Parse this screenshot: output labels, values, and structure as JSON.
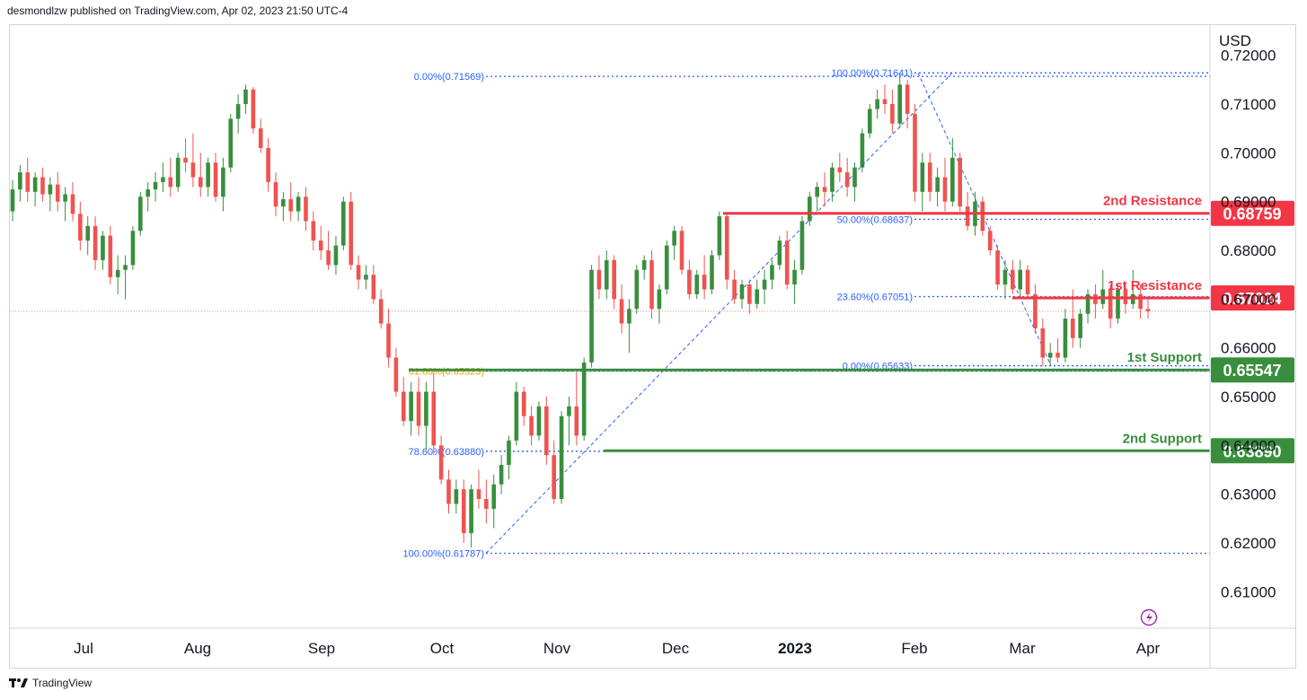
{
  "header": {
    "publisher": "desmondlzw published on TradingView.com, Apr 02, 2023 21:50 UTC-4"
  },
  "footer": {
    "brand": "TradingView",
    "logo_icon": "tradingview-logo-icon"
  },
  "colors": {
    "bull": "#388e3c",
    "bear": "#ef5350",
    "resistance": "#f23645",
    "support": "#388e3c",
    "fib": "#2962ff",
    "fib_gold": "#f0a000",
    "axis_text": "#131722"
  },
  "chart_data": {
    "type": "candlestick",
    "currency": "USD",
    "ylim": [
      0.6025,
      0.7262
    ],
    "y_ticks": [
      "0.72000",
      "0.71000",
      "0.70000",
      "0.69000",
      "0.68000",
      "0.67000",
      "0.66000",
      "0.65000",
      "0.64000",
      "0.63000",
      "0.62000",
      "0.61000"
    ],
    "x_ticks": [
      {
        "label": "Jul",
        "bold": false
      },
      {
        "label": "Aug",
        "bold": false
      },
      {
        "label": "Sep",
        "bold": false
      },
      {
        "label": "Oct",
        "bold": false
      },
      {
        "label": "Nov",
        "bold": false
      },
      {
        "label": "Dec",
        "bold": false
      },
      {
        "label": "2023",
        "bold": true
      },
      {
        "label": "Feb",
        "bold": false
      },
      {
        "label": "Mar",
        "bold": false
      },
      {
        "label": "Apr",
        "bold": false
      }
    ],
    "levels": [
      {
        "name": "2nd Resistance",
        "value": 0.68759,
        "value_label": "0.68759",
        "kind": "resistance"
      },
      {
        "name": "1st Resistance",
        "value": 0.67024,
        "value_label": "0.67024",
        "kind": "resistance"
      },
      {
        "name": "1st Support",
        "value": 0.65547,
        "value_label": "0.65547",
        "kind": "support"
      },
      {
        "name": "2nd Support",
        "value": 0.6389,
        "value_label": "0.63890",
        "kind": "support"
      }
    ],
    "fib_left": [
      {
        "label": "0.00%(0.71569)",
        "value": 0.71569
      },
      {
        "label": "61.80%(0.65523)",
        "value": 0.65523
      },
      {
        "label": "78.60%(0.63880)",
        "value": 0.6388
      },
      {
        "label": "100.00%(0.61787)",
        "value": 0.61787
      }
    ],
    "fib_right": [
      {
        "label": "100.00%(0.71641)",
        "value": 0.71641
      },
      {
        "label": "50.00%(0.68637)",
        "value": 0.68637
      },
      {
        "label": "23.60%(0.67051)",
        "value": 0.67051
      },
      {
        "label": "0.00%(0.65633)",
        "value": 0.65633
      }
    ],
    "candles": [
      [
        0.688,
        0.6945,
        0.686,
        0.6925
      ],
      [
        0.6925,
        0.6975,
        0.69,
        0.696
      ],
      [
        0.696,
        0.699,
        0.69,
        0.692
      ],
      [
        0.692,
        0.696,
        0.689,
        0.695
      ],
      [
        0.695,
        0.697,
        0.69,
        0.6915
      ],
      [
        0.6915,
        0.695,
        0.688,
        0.6935
      ],
      [
        0.6935,
        0.696,
        0.688,
        0.69
      ],
      [
        0.69,
        0.693,
        0.686,
        0.6915
      ],
      [
        0.6915,
        0.694,
        0.686,
        0.6875
      ],
      [
        0.6875,
        0.69,
        0.68,
        0.682
      ],
      [
        0.682,
        0.687,
        0.679,
        0.685
      ],
      [
        0.685,
        0.687,
        0.676,
        0.678
      ],
      [
        0.678,
        0.684,
        0.676,
        0.683
      ],
      [
        0.683,
        0.685,
        0.673,
        0.6745
      ],
      [
        0.6745,
        0.679,
        0.671,
        0.676
      ],
      [
        0.676,
        0.679,
        0.67,
        0.677
      ],
      [
        0.677,
        0.685,
        0.676,
        0.684
      ],
      [
        0.684,
        0.692,
        0.683,
        0.691
      ],
      [
        0.691,
        0.694,
        0.688,
        0.6925
      ],
      [
        0.6925,
        0.696,
        0.69,
        0.694
      ],
      [
        0.694,
        0.698,
        0.692,
        0.695
      ],
      [
        0.695,
        0.699,
        0.691,
        0.693
      ],
      [
        0.693,
        0.7,
        0.692,
        0.699
      ],
      [
        0.699,
        0.703,
        0.696,
        0.698
      ],
      [
        0.698,
        0.704,
        0.693,
        0.695
      ],
      [
        0.695,
        0.7,
        0.691,
        0.693
      ],
      [
        0.693,
        0.699,
        0.691,
        0.698
      ],
      [
        0.698,
        0.7,
        0.69,
        0.691
      ],
      [
        0.691,
        0.699,
        0.688,
        0.697
      ],
      [
        0.697,
        0.708,
        0.696,
        0.707
      ],
      [
        0.707,
        0.712,
        0.704,
        0.71
      ],
      [
        0.71,
        0.714,
        0.708,
        0.713
      ],
      [
        0.713,
        0.7135,
        0.704,
        0.705
      ],
      [
        0.705,
        0.707,
        0.7,
        0.701
      ],
      [
        0.701,
        0.703,
        0.692,
        0.694
      ],
      [
        0.694,
        0.696,
        0.687,
        0.689
      ],
      [
        0.689,
        0.692,
        0.686,
        0.6905
      ],
      [
        0.6905,
        0.694,
        0.686,
        0.688
      ],
      [
        0.688,
        0.692,
        0.686,
        0.691
      ],
      [
        0.691,
        0.693,
        0.684,
        0.686
      ],
      [
        0.686,
        0.688,
        0.68,
        0.682
      ],
      [
        0.682,
        0.685,
        0.678,
        0.68
      ],
      [
        0.68,
        0.684,
        0.676,
        0.677
      ],
      [
        0.677,
        0.683,
        0.675,
        0.681
      ],
      [
        0.681,
        0.691,
        0.68,
        0.69
      ],
      [
        0.69,
        0.692,
        0.676,
        0.677
      ],
      [
        0.677,
        0.679,
        0.672,
        0.674
      ],
      [
        0.674,
        0.677,
        0.672,
        0.675
      ],
      [
        0.675,
        0.677,
        0.669,
        0.67
      ],
      [
        0.67,
        0.672,
        0.664,
        0.665
      ],
      [
        0.665,
        0.668,
        0.656,
        0.658
      ],
      [
        0.658,
        0.66,
        0.65,
        0.651
      ],
      [
        0.651,
        0.654,
        0.644,
        0.645
      ],
      [
        0.645,
        0.653,
        0.642,
        0.651
      ],
      [
        0.651,
        0.654,
        0.642,
        0.644
      ],
      [
        0.644,
        0.653,
        0.639,
        0.651
      ],
      [
        0.651,
        0.655,
        0.638,
        0.64
      ],
      [
        0.64,
        0.642,
        0.632,
        0.633
      ],
      [
        0.633,
        0.635,
        0.626,
        0.628
      ],
      [
        0.628,
        0.633,
        0.626,
        0.631
      ],
      [
        0.631,
        0.633,
        0.62,
        0.622
      ],
      [
        0.622,
        0.632,
        0.619,
        0.631
      ],
      [
        0.631,
        0.635,
        0.627,
        0.629
      ],
      [
        0.629,
        0.633,
        0.624,
        0.627
      ],
      [
        0.627,
        0.634,
        0.623,
        0.632
      ],
      [
        0.632,
        0.638,
        0.63,
        0.636
      ],
      [
        0.636,
        0.642,
        0.633,
        0.641
      ],
      [
        0.641,
        0.653,
        0.64,
        0.651
      ],
      [
        0.651,
        0.652,
        0.644,
        0.646
      ],
      [
        0.646,
        0.648,
        0.64,
        0.642
      ],
      [
        0.642,
        0.649,
        0.641,
        0.648
      ],
      [
        0.648,
        0.65,
        0.636,
        0.638
      ],
      [
        0.638,
        0.641,
        0.628,
        0.629
      ],
      [
        0.629,
        0.647,
        0.628,
        0.646
      ],
      [
        0.646,
        0.65,
        0.64,
        0.648
      ],
      [
        0.648,
        0.655,
        0.64,
        0.642
      ],
      [
        0.642,
        0.658,
        0.641,
        0.657
      ],
      [
        0.657,
        0.677,
        0.656,
        0.676
      ],
      [
        0.676,
        0.679,
        0.67,
        0.672
      ],
      [
        0.672,
        0.68,
        0.67,
        0.678
      ],
      [
        0.678,
        0.679,
        0.668,
        0.67
      ],
      [
        0.67,
        0.673,
        0.663,
        0.665
      ],
      [
        0.665,
        0.67,
        0.659,
        0.668
      ],
      [
        0.668,
        0.677,
        0.667,
        0.676
      ],
      [
        0.676,
        0.679,
        0.674,
        0.678
      ],
      [
        0.678,
        0.68,
        0.666,
        0.668
      ],
      [
        0.668,
        0.673,
        0.665,
        0.672
      ],
      [
        0.672,
        0.682,
        0.671,
        0.681
      ],
      [
        0.681,
        0.685,
        0.678,
        0.684
      ],
      [
        0.684,
        0.685,
        0.675,
        0.676
      ],
      [
        0.676,
        0.678,
        0.67,
        0.671
      ],
      [
        0.671,
        0.676,
        0.67,
        0.675
      ],
      [
        0.675,
        0.679,
        0.67,
        0.672
      ],
      [
        0.672,
        0.68,
        0.671,
        0.679
      ],
      [
        0.679,
        0.688,
        0.678,
        0.687
      ],
      [
        0.687,
        0.6875,
        0.672,
        0.674
      ],
      [
        0.674,
        0.676,
        0.669,
        0.67
      ],
      [
        0.67,
        0.674,
        0.668,
        0.673
      ],
      [
        0.673,
        0.674,
        0.667,
        0.669
      ],
      [
        0.669,
        0.674,
        0.668,
        0.672
      ],
      [
        0.672,
        0.676,
        0.669,
        0.674
      ],
      [
        0.674,
        0.678,
        0.672,
        0.677
      ],
      [
        0.677,
        0.683,
        0.676,
        0.682
      ],
      [
        0.682,
        0.684,
        0.672,
        0.673
      ],
      [
        0.673,
        0.678,
        0.669,
        0.676
      ],
      [
        0.676,
        0.687,
        0.675,
        0.686
      ],
      [
        0.686,
        0.692,
        0.685,
        0.691
      ],
      [
        0.691,
        0.694,
        0.688,
        0.693
      ],
      [
        0.693,
        0.696,
        0.689,
        0.692
      ],
      [
        0.692,
        0.698,
        0.69,
        0.697
      ],
      [
        0.697,
        0.7,
        0.694,
        0.696
      ],
      [
        0.696,
        0.699,
        0.691,
        0.693
      ],
      [
        0.693,
        0.698,
        0.69,
        0.697
      ],
      [
        0.697,
        0.705,
        0.696,
        0.704
      ],
      [
        0.704,
        0.71,
        0.703,
        0.709
      ],
      [
        0.709,
        0.713,
        0.707,
        0.711
      ],
      [
        0.711,
        0.714,
        0.708,
        0.71
      ],
      [
        0.71,
        0.713,
        0.704,
        0.706
      ],
      [
        0.706,
        0.7164,
        0.705,
        0.714
      ],
      [
        0.714,
        0.715,
        0.705,
        0.708
      ],
      [
        0.708,
        0.71,
        0.69,
        0.692
      ],
      [
        0.692,
        0.7,
        0.688,
        0.698
      ],
      [
        0.698,
        0.7,
        0.69,
        0.692
      ],
      [
        0.692,
        0.697,
        0.689,
        0.695
      ],
      [
        0.695,
        0.699,
        0.688,
        0.69
      ],
      [
        0.69,
        0.703,
        0.689,
        0.699
      ],
      [
        0.699,
        0.7,
        0.688,
        0.689
      ],
      [
        0.689,
        0.692,
        0.684,
        0.685
      ],
      [
        0.685,
        0.692,
        0.683,
        0.69
      ],
      [
        0.69,
        0.691,
        0.683,
        0.684
      ],
      [
        0.684,
        0.685,
        0.679,
        0.68
      ],
      [
        0.68,
        0.681,
        0.672,
        0.673
      ],
      [
        0.673,
        0.678,
        0.67,
        0.676
      ],
      [
        0.676,
        0.678,
        0.671,
        0.672
      ],
      [
        0.672,
        0.678,
        0.67,
        0.676
      ],
      [
        0.676,
        0.677,
        0.67,
        0.671
      ],
      [
        0.671,
        0.673,
        0.663,
        0.664
      ],
      [
        0.664,
        0.666,
        0.6563,
        0.658
      ],
      [
        0.658,
        0.661,
        0.6563,
        0.659
      ],
      [
        0.659,
        0.662,
        0.657,
        0.658
      ],
      [
        0.658,
        0.668,
        0.657,
        0.666
      ],
      [
        0.666,
        0.672,
        0.66,
        0.662
      ],
      [
        0.662,
        0.668,
        0.66,
        0.667
      ],
      [
        0.667,
        0.672,
        0.665,
        0.671
      ],
      [
        0.671,
        0.673,
        0.666,
        0.669
      ],
      [
        0.669,
        0.676,
        0.668,
        0.672
      ],
      [
        0.672,
        0.673,
        0.664,
        0.666
      ],
      [
        0.666,
        0.673,
        0.665,
        0.672
      ],
      [
        0.672,
        0.673,
        0.667,
        0.669
      ],
      [
        0.669,
        0.676,
        0.668,
        0.671
      ],
      [
        0.671,
        0.673,
        0.666,
        0.668
      ],
      [
        0.668,
        0.67,
        0.666,
        0.6675
      ]
    ]
  }
}
